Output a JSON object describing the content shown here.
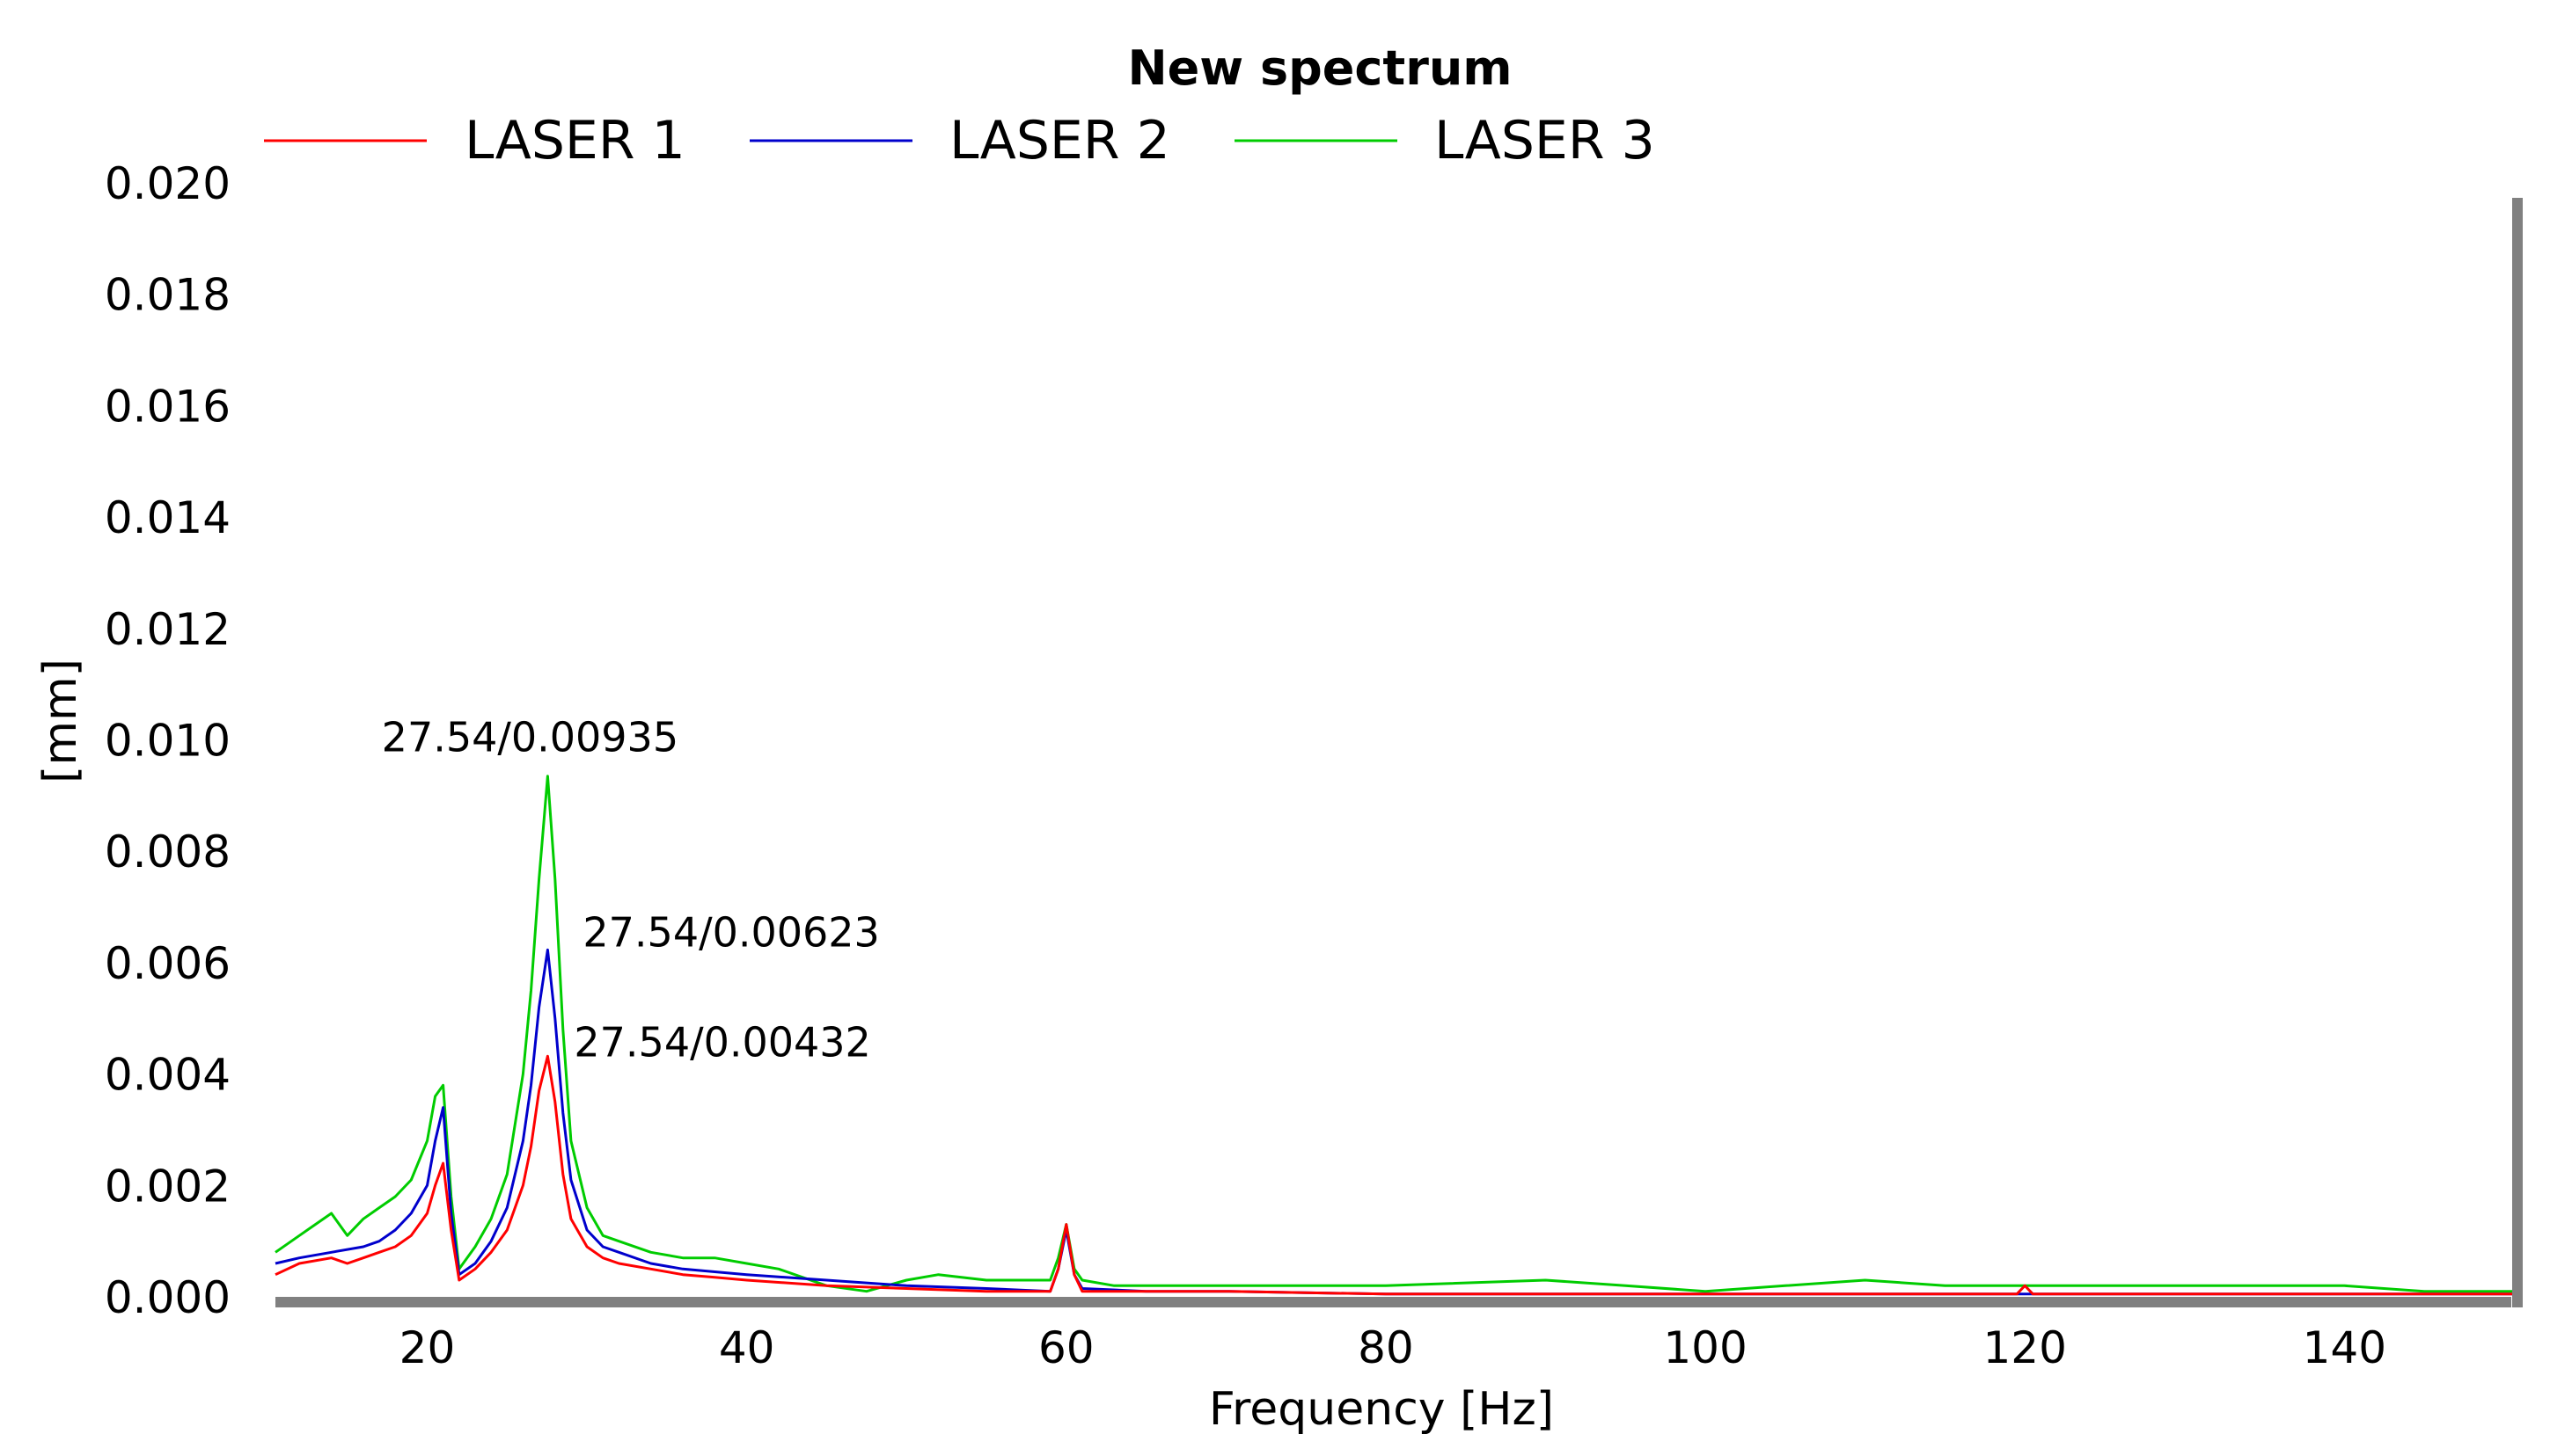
{
  "chart_data": {
    "type": "line",
    "title": "New spectrum",
    "xlabel": "Frequency [Hz]",
    "ylabel": "[mm]",
    "xlim": [
      10.5,
      150.5
    ],
    "ylim": [
      0,
      0.02
    ],
    "xticks": [
      20,
      40,
      60,
      80,
      100,
      120,
      140
    ],
    "xtick_labels": [
      "20",
      "40",
      "60",
      "80",
      "100",
      "120",
      "140"
    ],
    "yticks": [
      0,
      0.002,
      0.004,
      0.006,
      0.008,
      0.01,
      0.012,
      0.014,
      0.016,
      0.018,
      0.02
    ],
    "ytick_labels": [
      "0.000",
      "0.002",
      "0.004",
      "0.006",
      "0.008",
      "0.010",
      "0.012",
      "0.014",
      "0.016",
      "0.018",
      "0.020"
    ],
    "legend_position": "top",
    "grid": false,
    "series": [
      {
        "name": "LASER 1",
        "color": "#ff0000",
        "x": [
          10.5,
          12,
          14,
          15,
          16,
          17,
          18,
          19,
          20,
          20.5,
          21,
          21.5,
          22,
          23,
          24,
          25,
          26,
          26.5,
          27,
          27.54,
          28,
          28.5,
          29,
          30,
          31,
          32,
          34,
          36,
          38,
          40,
          45,
          50,
          55,
          59,
          59.5,
          60,
          60.5,
          61,
          65,
          70,
          80,
          90,
          100,
          110,
          119.5,
          120,
          120.5,
          130,
          140,
          150.5
        ],
        "y": [
          0.0004,
          0.0006,
          0.0007,
          0.0006,
          0.0007,
          0.0008,
          0.0009,
          0.0011,
          0.0015,
          0.002,
          0.0024,
          0.0012,
          0.0003,
          0.0005,
          0.0008,
          0.0012,
          0.002,
          0.0027,
          0.0037,
          0.00432,
          0.0035,
          0.0022,
          0.0014,
          0.0009,
          0.0007,
          0.0006,
          0.0005,
          0.0004,
          0.00035,
          0.0003,
          0.0002,
          0.00015,
          0.0001,
          0.0001,
          0.0005,
          0.0013,
          0.0004,
          0.0001,
          0.0001,
          0.0001,
          5e-05,
          5e-05,
          5e-05,
          5e-05,
          5e-05,
          0.0002,
          5e-05,
          5e-05,
          5e-05,
          5e-05
        ]
      },
      {
        "name": "LASER 2",
        "color": "#0000cc",
        "x": [
          10.5,
          12,
          14,
          16,
          17,
          18,
          19,
          20,
          20.5,
          21,
          21.5,
          22,
          23,
          24,
          25,
          26,
          26.5,
          27,
          27.54,
          28,
          28.5,
          29,
          30,
          31,
          32,
          34,
          36,
          38,
          40,
          45,
          50,
          55,
          59,
          59.5,
          60,
          60.5,
          61,
          65,
          70,
          80,
          90,
          100,
          110,
          120,
          130,
          140,
          150.5
        ],
        "y": [
          0.0006,
          0.0007,
          0.0008,
          0.0009,
          0.001,
          0.0012,
          0.0015,
          0.002,
          0.0028,
          0.0034,
          0.0015,
          0.0004,
          0.0006,
          0.001,
          0.0016,
          0.0028,
          0.0038,
          0.0052,
          0.00623,
          0.005,
          0.0033,
          0.0021,
          0.0012,
          0.0009,
          0.0008,
          0.0006,
          0.0005,
          0.00045,
          0.0004,
          0.0003,
          0.0002,
          0.00015,
          0.0001,
          0.0005,
          0.0012,
          0.0004,
          0.00015,
          0.0001,
          0.0001,
          5e-05,
          5e-05,
          5e-05,
          5e-05,
          5e-05,
          5e-05,
          5e-05,
          5e-05
        ]
      },
      {
        "name": "LASER 3",
        "color": "#00cc00",
        "x": [
          10.5,
          12,
          14,
          15,
          16,
          17,
          18,
          19,
          20,
          20.5,
          21,
          21.5,
          22,
          23,
          24,
          25,
          26,
          26.5,
          27,
          27.54,
          28,
          28.5,
          29,
          30,
          31,
          32,
          34,
          36,
          38,
          40,
          42,
          45,
          47.5,
          50,
          52,
          55,
          59,
          59.5,
          60,
          60.5,
          61,
          63,
          65,
          70,
          75,
          80,
          90,
          95,
          100,
          105,
          110,
          115,
          120,
          125,
          130,
          140,
          145,
          150.5
        ],
        "y": [
          0.0008,
          0.0011,
          0.0015,
          0.0011,
          0.0014,
          0.0016,
          0.0018,
          0.0021,
          0.0028,
          0.0036,
          0.0038,
          0.0018,
          0.0005,
          0.0009,
          0.0014,
          0.0022,
          0.004,
          0.0055,
          0.0075,
          0.00935,
          0.0075,
          0.0048,
          0.0028,
          0.0016,
          0.0011,
          0.001,
          0.0008,
          0.0007,
          0.0007,
          0.0006,
          0.0005,
          0.0002,
          0.0001,
          0.0003,
          0.0004,
          0.0003,
          0.0003,
          0.0007,
          0.0013,
          0.0005,
          0.0003,
          0.0002,
          0.0002,
          0.0002,
          0.0002,
          0.0002,
          0.0003,
          0.0002,
          0.0001,
          0.0002,
          0.0003,
          0.0002,
          0.0002,
          0.0002,
          0.0002,
          0.0002,
          0.0001,
          0.0001
        ]
      }
    ],
    "annotations": [
      {
        "text": "27.54/0.00935",
        "x": 27.54,
        "y": 0.00935,
        "series": "LASER 3"
      },
      {
        "text": "27.54/0.00623",
        "x": 27.54,
        "y": 0.00623,
        "series": "LASER 2"
      },
      {
        "text": "27.54/0.00432",
        "x": 27.54,
        "y": 0.00432,
        "series": "LASER 1"
      }
    ]
  }
}
